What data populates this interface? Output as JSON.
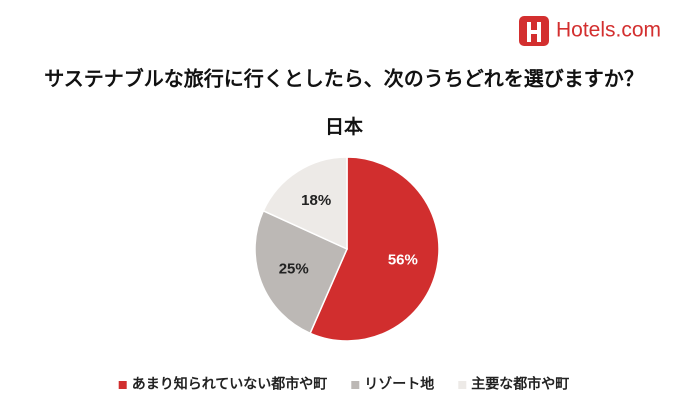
{
  "logo": "Hotels.com",
  "chart_data": {
    "type": "pie",
    "title": "サステナブルな旅行に行くとしたら、次のうちどれを選びますか？",
    "subtitle": "日本",
    "categories": [
      "あまり知られていない都市や町",
      "リゾート地",
      "主要な都市や町"
    ],
    "values": [
      56,
      25,
      18
    ],
    "value_labels": [
      "56%",
      "25%",
      "18%"
    ],
    "colors": [
      "#d12e2e",
      "#bcb8b5",
      "#edeae7"
    ],
    "label_colors": [
      "#ffffff",
      "#222222",
      "#222222"
    ],
    "legend": "bottom"
  }
}
